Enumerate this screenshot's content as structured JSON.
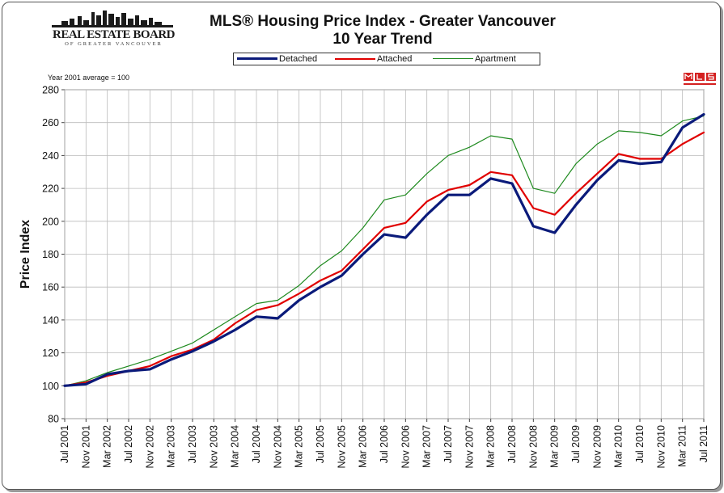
{
  "header": {
    "logo_text": "REAL ESTATE BOARD",
    "logo_subtext": "OF GREATER VANCOUVER",
    "note": "Year 2001 average = 100"
  },
  "chart_data": {
    "type": "line",
    "title": "MLS®  Housing Price Index - Greater Vancouver",
    "subtitle": "10 Year Trend",
    "ylabel": "Price Index",
    "xlabel": "",
    "ylim": [
      80,
      280
    ],
    "yticks": [
      80,
      100,
      120,
      140,
      160,
      180,
      200,
      220,
      240,
      260,
      280
    ],
    "grid": true,
    "legend_position": "top",
    "x_start": "Jul 2001",
    "x_end": "Jul 2011",
    "xtick_labels": [
      "Jul 2001",
      "Nov 2001",
      "Mar 2002",
      "Jul 2002",
      "Nov 2002",
      "Mar 2003",
      "Jul 2003",
      "Nov 2003",
      "Mar 2004",
      "Jul 2004",
      "Nov 2004",
      "Mar 2005",
      "Jul 2005",
      "Nov 2005",
      "Mar 2006",
      "Jul 2006",
      "Nov 2006",
      "Mar 2007",
      "Jul 2007",
      "Nov 2007",
      "Mar 2008",
      "Jul 2008",
      "Nov 2008",
      "Mar 2009",
      "Jul 2009",
      "Nov 2009",
      "Mar 2010",
      "Jul 2010",
      "Nov 2010",
      "Mar 2011",
      "Jul 2011"
    ],
    "series": [
      {
        "name": "Detached",
        "color": "#0a1a7a",
        "points": [
          [
            "Jul 2001",
            100
          ],
          [
            "Nov 2001",
            101
          ],
          [
            "Mar 2002",
            107
          ],
          [
            "Jul 2002",
            109
          ],
          [
            "Nov 2002",
            110
          ],
          [
            "Mar 2003",
            116
          ],
          [
            "Jul 2003",
            121
          ],
          [
            "Nov 2003",
            127
          ],
          [
            "Mar 2004",
            134
          ],
          [
            "Jul 2004",
            142
          ],
          [
            "Nov 2004",
            141
          ],
          [
            "Mar 2005",
            152
          ],
          [
            "Jul 2005",
            160
          ],
          [
            "Nov 2005",
            167
          ],
          [
            "Mar 2006",
            180
          ],
          [
            "Jul 2006",
            192
          ],
          [
            "Nov 2006",
            190
          ],
          [
            "Mar 2007",
            204
          ],
          [
            "Jul 2007",
            216
          ],
          [
            "Nov 2007",
            216
          ],
          [
            "Mar 2008",
            226
          ],
          [
            "Jul 2008",
            223
          ],
          [
            "Nov 2008",
            197
          ],
          [
            "Mar 2009",
            193
          ],
          [
            "Jul 2009",
            210
          ],
          [
            "Nov 2009",
            225
          ],
          [
            "Mar 2010",
            237
          ],
          [
            "Jul 2010",
            235
          ],
          [
            "Nov 2010",
            236
          ],
          [
            "Mar 2011",
            257
          ],
          [
            "Jul 2011",
            265
          ]
        ]
      },
      {
        "name": "Attached",
        "color": "#e00000",
        "points": [
          [
            "Jul 2001",
            100
          ],
          [
            "Nov 2001",
            102
          ],
          [
            "Mar 2002",
            106
          ],
          [
            "Jul 2002",
            109
          ],
          [
            "Nov 2002",
            112
          ],
          [
            "Mar 2003",
            118
          ],
          [
            "Jul 2003",
            122
          ],
          [
            "Nov 2003",
            128
          ],
          [
            "Mar 2004",
            138
          ],
          [
            "Jul 2004",
            146
          ],
          [
            "Nov 2004",
            149
          ],
          [
            "Mar 2005",
            156
          ],
          [
            "Jul 2005",
            164
          ],
          [
            "Nov 2005",
            170
          ],
          [
            "Mar 2006",
            183
          ],
          [
            "Jul 2006",
            196
          ],
          [
            "Nov 2006",
            199
          ],
          [
            "Mar 2007",
            212
          ],
          [
            "Jul 2007",
            219
          ],
          [
            "Nov 2007",
            222
          ],
          [
            "Mar 2008",
            230
          ],
          [
            "Jul 2008",
            228
          ],
          [
            "Nov 2008",
            208
          ],
          [
            "Mar 2009",
            204
          ],
          [
            "Jul 2009",
            217
          ],
          [
            "Nov 2009",
            229
          ],
          [
            "Mar 2010",
            241
          ],
          [
            "Jul 2010",
            238
          ],
          [
            "Nov 2010",
            238
          ],
          [
            "Mar 2011",
            247
          ],
          [
            "Jul 2011",
            254
          ]
        ]
      },
      {
        "name": "Apartment",
        "color": "#1e8a1e",
        "points": [
          [
            "Jul 2001",
            100
          ],
          [
            "Nov 2001",
            103
          ],
          [
            "Mar 2002",
            108
          ],
          [
            "Jul 2002",
            112
          ],
          [
            "Nov 2002",
            116
          ],
          [
            "Mar 2003",
            121
          ],
          [
            "Jul 2003",
            126
          ],
          [
            "Nov 2003",
            134
          ],
          [
            "Mar 2004",
            142
          ],
          [
            "Jul 2004",
            150
          ],
          [
            "Nov 2004",
            152
          ],
          [
            "Mar 2005",
            161
          ],
          [
            "Jul 2005",
            173
          ],
          [
            "Nov 2005",
            182
          ],
          [
            "Mar 2006",
            196
          ],
          [
            "Jul 2006",
            213
          ],
          [
            "Nov 2006",
            216
          ],
          [
            "Mar 2007",
            229
          ],
          [
            "Jul 2007",
            240
          ],
          [
            "Nov 2007",
            245
          ],
          [
            "Mar 2008",
            252
          ],
          [
            "Jul 2008",
            250
          ],
          [
            "Nov 2008",
            220
          ],
          [
            "Mar 2009",
            217
          ],
          [
            "Jul 2009",
            235
          ],
          [
            "Nov 2009",
            247
          ],
          [
            "Mar 2010",
            255
          ],
          [
            "Jul 2010",
            254
          ],
          [
            "Nov 2010",
            252
          ],
          [
            "Mar 2011",
            261
          ],
          [
            "Jul 2011",
            264
          ]
        ]
      }
    ]
  }
}
